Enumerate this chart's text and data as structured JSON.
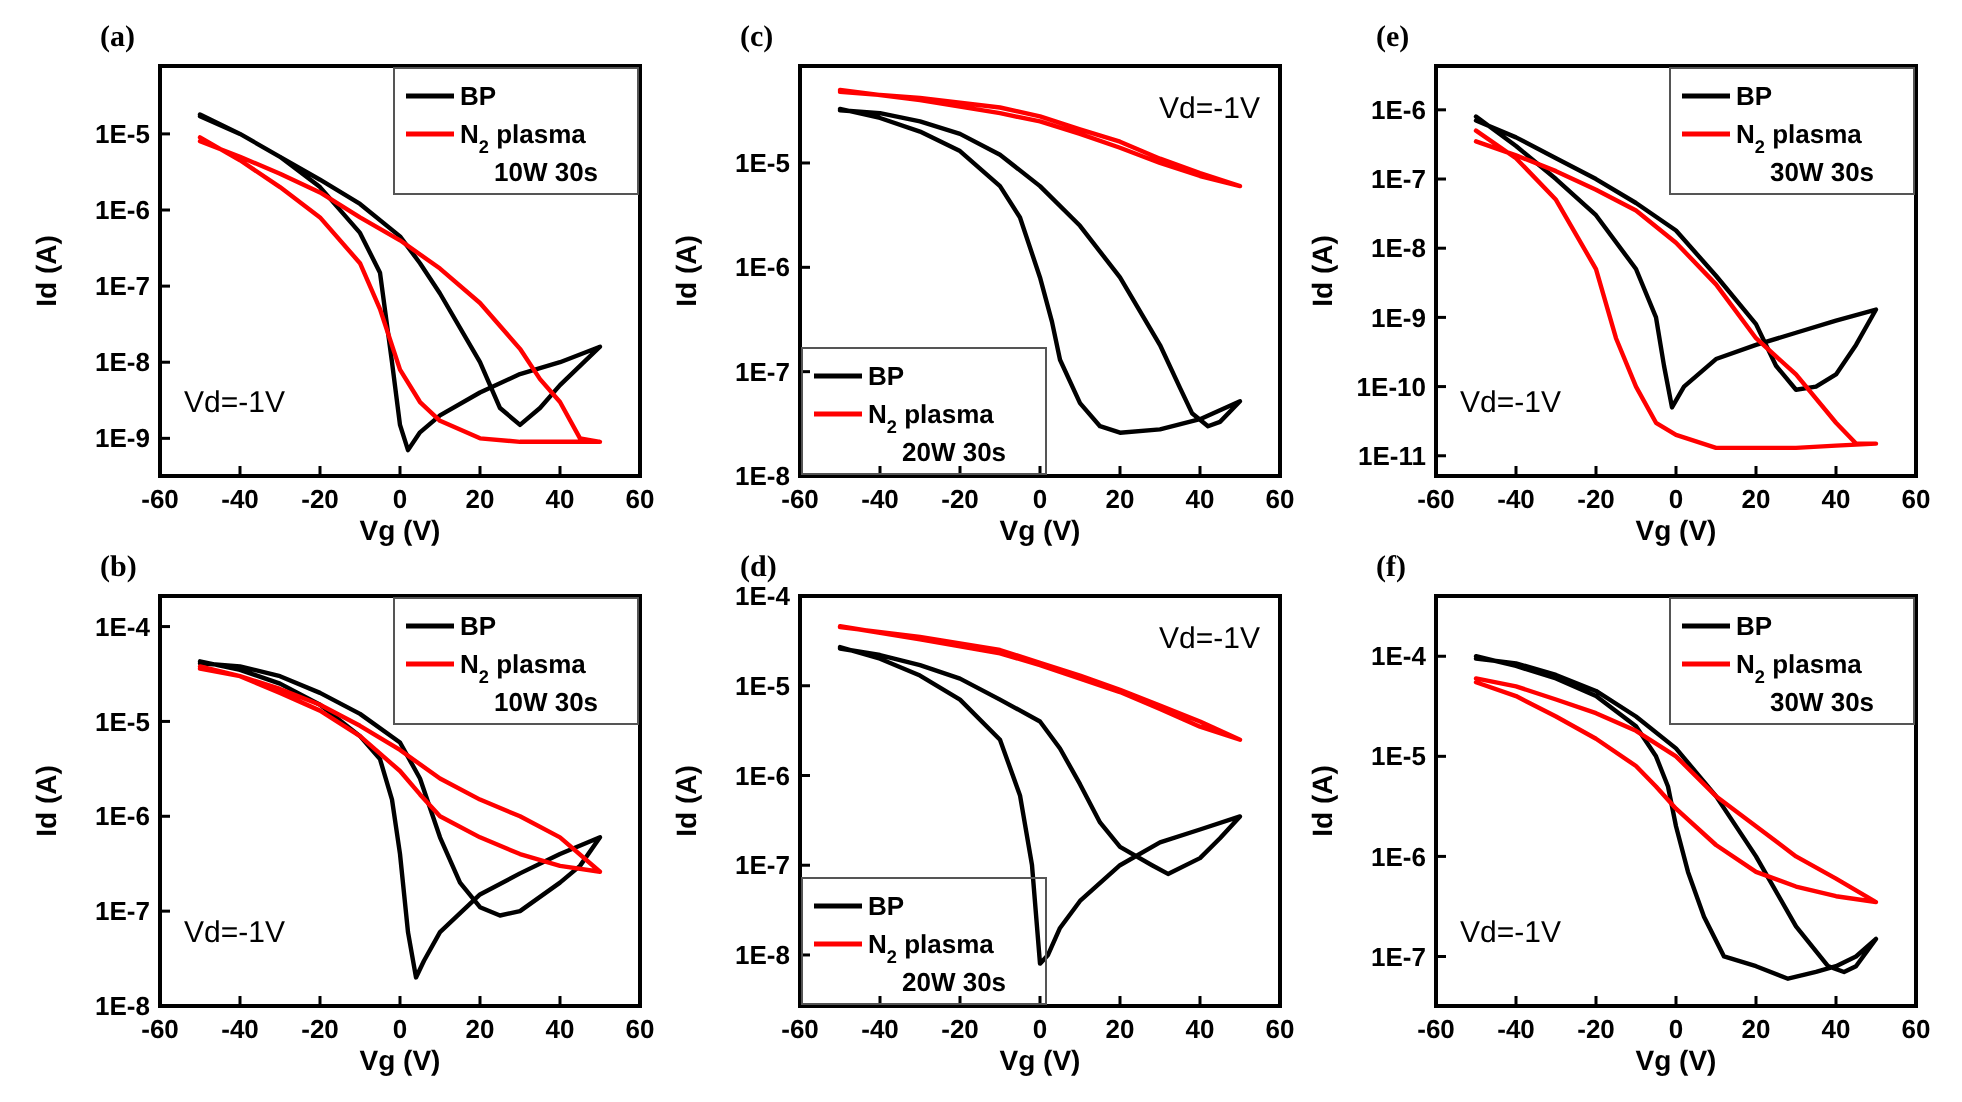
{
  "chart_data": [
    {
      "type": "line",
      "title": "(a)",
      "xlabel": "Vg (V)",
      "ylabel": "Id (A)",
      "annotations": [
        "Vd=-1V"
      ],
      "log": "y",
      "legend": "top right",
      "xlim": [
        -60,
        60
      ],
      "xticks": [
        -60,
        -40,
        -20,
        0,
        20,
        40,
        60
      ],
      "ylim": [
        3.2e-10,
        7.8e-05
      ],
      "yticks": [
        {
          "value": 1e-09,
          "label": "1E-9"
        },
        {
          "value": 1e-08,
          "label": "1E-8"
        },
        {
          "value": 1e-07,
          "label": "1E-7"
        },
        {
          "value": 1e-06,
          "label": "1E-6"
        },
        {
          "value": 1e-05,
          "label": "1E-5"
        }
      ],
      "series": [
        {
          "name": "BP",
          "color": "#000000",
          "x": [
            -50,
            -40,
            -30,
            -20,
            -10,
            -5,
            -2,
            0,
            2,
            5,
            10,
            20,
            30,
            40,
            50,
            40,
            35,
            30,
            25,
            20,
            10,
            5,
            0,
            -10,
            -20,
            -30,
            -40,
            -50
          ],
          "values": [
            1.8e-05,
            1e-05,
            5e-06,
            2e-06,
            5e-07,
            1.5e-07,
            1e-08,
            1.5e-09,
            7e-10,
            1.2e-09,
            2e-09,
            4e-09,
            7e-09,
            1e-08,
            1.6e-08,
            5e-09,
            2.5e-09,
            1.5e-09,
            2.5e-09,
            1e-08,
            8e-08,
            2e-07,
            4.5e-07,
            1.2e-06,
            2.5e-06,
            5e-06,
            1e-05,
            1.7e-05
          ]
        },
        {
          "name": "N$_{2}$ plasma\n10W 30s",
          "color": "#ff0000",
          "x": [
            -50,
            -40,
            -30,
            -20,
            -10,
            -5,
            0,
            5,
            10,
            20,
            30,
            40,
            50,
            45,
            40,
            35,
            30,
            20,
            10,
            0,
            -10,
            -20,
            -30,
            -40,
            -50
          ],
          "values": [
            9e-06,
            4.5e-06,
            2e-06,
            8e-07,
            2e-07,
            5e-08,
            8e-09,
            3e-09,
            1.7e-09,
            1e-09,
            9e-10,
            9e-10,
            9e-10,
            1e-09,
            3e-09,
            6e-09,
            1.5e-08,
            6e-08,
            1.7e-07,
            4e-07,
            8e-07,
            1.7e-06,
            3e-06,
            5e-06,
            8e-06
          ]
        }
      ]
    },
    {
      "type": "line",
      "title": "(b)",
      "xlabel": "Vg (V)",
      "ylabel": "Id (A)",
      "annotations": [
        "Vd=-1V"
      ],
      "log": "y",
      "legend": "top right",
      "xlim": [
        -60,
        60
      ],
      "xticks": [
        -60,
        -40,
        -20,
        0,
        20,
        40,
        60
      ],
      "ylim": [
        1e-08,
        0.00021
      ],
      "yticks": [
        {
          "value": 1e-08,
          "label": "1E-8"
        },
        {
          "value": 1e-07,
          "label": "1E-7"
        },
        {
          "value": 1e-06,
          "label": "1E-6"
        },
        {
          "value": 1e-05,
          "label": "1E-5"
        },
        {
          "value": 0.0001,
          "label": "1E-4"
        }
      ],
      "series": [
        {
          "name": "BP",
          "color": "#000000",
          "x": [
            -50,
            -40,
            -30,
            -20,
            -10,
            -5,
            -2,
            0,
            2,
            4,
            6,
            10,
            20,
            30,
            40,
            50,
            45,
            40,
            30,
            25,
            20,
            15,
            10,
            5,
            0,
            -10,
            -20,
            -30,
            -40,
            -50
          ],
          "values": [
            4.3e-05,
            3.5e-05,
            2.5e-05,
            1.5e-05,
            7e-06,
            4e-06,
            1.5e-06,
            4e-07,
            6e-08,
            2e-08,
            3e-08,
            6e-08,
            1.5e-07,
            2.5e-07,
            4e-07,
            6e-07,
            3e-07,
            2e-07,
            1e-07,
            9e-08,
            1.1e-07,
            2e-07,
            6e-07,
            2.5e-06,
            6e-06,
            1.2e-05,
            2e-05,
            3e-05,
            3.8e-05,
            4.1e-05
          ]
        },
        {
          "name": "N$_{2}$ plasma\n10W 30s",
          "color": "#ff0000",
          "x": [
            -50,
            -40,
            -30,
            -20,
            -10,
            0,
            5,
            10,
            20,
            30,
            40,
            50,
            40,
            30,
            20,
            10,
            0,
            -10,
            -20,
            -30,
            -40,
            -50
          ],
          "values": [
            3.8e-05,
            3e-05,
            2e-05,
            1.3e-05,
            7e-06,
            3e-06,
            1.7e-06,
            1e-06,
            6e-07,
            4e-07,
            3e-07,
            2.6e-07,
            6e-07,
            1e-06,
            1.5e-06,
            2.5e-06,
            5e-06,
            9e-06,
            1.5e-05,
            2.2e-05,
            3e-05,
            3.6e-05
          ]
        }
      ]
    },
    {
      "type": "line",
      "title": "(c)",
      "xlabel": "Vg (V)",
      "ylabel": "Id (A)",
      "annotations": [
        "Vd=-1V"
      ],
      "log": "y",
      "legend": "bottom left",
      "xlim": [
        -60,
        60
      ],
      "xticks": [
        -60,
        -40,
        -20,
        0,
        20,
        40,
        60
      ],
      "ylim": [
        1e-08,
        8.5e-05
      ],
      "yticks": [
        {
          "value": 1e-08,
          "label": "1E-8"
        },
        {
          "value": 1e-07,
          "label": "1E-7"
        },
        {
          "value": 1e-06,
          "label": "1E-6"
        },
        {
          "value": 1e-05,
          "label": "1E-5"
        }
      ],
      "series": [
        {
          "name": "BP",
          "color": "#000000",
          "x": [
            -50,
            -40,
            -30,
            -20,
            -10,
            -5,
            0,
            3,
            5,
            10,
            15,
            20,
            30,
            40,
            50,
            45,
            42,
            38,
            35,
            30,
            20,
            10,
            0,
            -10,
            -20,
            -30,
            -40,
            -50
          ],
          "values": [
            3.3e-05,
            2.7e-05,
            2e-05,
            1.3e-05,
            6e-06,
            3e-06,
            8e-07,
            3e-07,
            1.3e-07,
            5e-08,
            3e-08,
            2.6e-08,
            2.8e-08,
            3.5e-08,
            5.2e-08,
            3.3e-08,
            3e-08,
            4e-08,
            7e-08,
            1.8e-07,
            8e-07,
            2.5e-06,
            6e-06,
            1.2e-05,
            1.9e-05,
            2.5e-05,
            3e-05,
            3.2e-05
          ]
        },
        {
          "name": "N$_{2}$ plasma\n20W 30s",
          "color": "#ff0000",
          "x": [
            -50,
            -30,
            -10,
            0,
            10,
            20,
            30,
            40,
            50,
            40,
            30,
            20,
            10,
            0,
            -10,
            -30,
            -50
          ],
          "values": [
            5e-05,
            4e-05,
            3e-05,
            2.5e-05,
            1.9e-05,
            1.4e-05,
            1e-05,
            7.5e-06,
            6e-06,
            8e-06,
            1.1e-05,
            1.6e-05,
            2.1e-05,
            2.8e-05,
            3.4e-05,
            4.2e-05,
            4.8e-05
          ]
        }
      ]
    },
    {
      "type": "line",
      "title": "(d)",
      "xlabel": "Vg (V)",
      "ylabel": "Id (A)",
      "annotations": [
        "Vd=-1V"
      ],
      "log": "y",
      "legend": "bottom left",
      "xlim": [
        -60,
        60
      ],
      "xticks": [
        -60,
        -40,
        -20,
        0,
        20,
        40,
        60
      ],
      "ylim": [
        2.7e-09,
        0.0001
      ],
      "yticks": [
        {
          "value": 1e-08,
          "label": "1E-8"
        },
        {
          "value": 1e-07,
          "label": "1E-7"
        },
        {
          "value": 1e-06,
          "label": "1E-6"
        },
        {
          "value": 1e-05,
          "label": "1E-5"
        },
        {
          "value": 0.0001,
          "label": "1E-4"
        }
      ],
      "series": [
        {
          "name": "BP",
          "color": "#000000",
          "x": [
            -50,
            -40,
            -30,
            -20,
            -10,
            -5,
            -2,
            0,
            2,
            5,
            10,
            20,
            30,
            40,
            50,
            45,
            40,
            32,
            28,
            20,
            15,
            10,
            5,
            0,
            -10,
            -20,
            -30,
            -40,
            -50
          ],
          "values": [
            2.7e-05,
            2e-05,
            1.3e-05,
            7e-06,
            2.5e-06,
            6e-07,
            1e-07,
            8e-09,
            1e-08,
            2e-08,
            4e-08,
            1e-07,
            1.8e-07,
            2.5e-07,
            3.5e-07,
            2e-07,
            1.2e-07,
            8e-08,
            1e-07,
            1.6e-07,
            3e-07,
            8e-07,
            2e-06,
            4e-06,
            7e-06,
            1.2e-05,
            1.7e-05,
            2.2e-05,
            2.6e-05
          ]
        },
        {
          "name": "N$_{2}$ plasma\n20W 30s",
          "color": "#ff0000",
          "x": [
            -50,
            -30,
            -10,
            0,
            10,
            20,
            30,
            40,
            50,
            40,
            30,
            20,
            10,
            0,
            -10,
            -30,
            -50
          ],
          "values": [
            4.5e-05,
            3.5e-05,
            2.5e-05,
            1.8e-05,
            1.3e-05,
            9e-06,
            6e-06,
            4e-06,
            2.5e-06,
            3.5e-06,
            5.5e-06,
            8.5e-06,
            1.2e-05,
            1.7e-05,
            2.3e-05,
            3.3e-05,
            4.6e-05
          ]
        }
      ]
    },
    {
      "type": "line",
      "title": "(e)",
      "xlabel": "Vg (V)",
      "ylabel": "Id (A)",
      "annotations": [
        "Vd=-1V"
      ],
      "log": "y",
      "legend": "top right",
      "xlim": [
        -60,
        60
      ],
      "xticks": [
        -60,
        -40,
        -20,
        0,
        20,
        40,
        60
      ],
      "ylim": [
        5.1e-12,
        4.3e-06
      ],
      "yticks": [
        {
          "value": 1e-11,
          "label": "1E-11"
        },
        {
          "value": 1e-10,
          "label": "1E-10"
        },
        {
          "value": 1e-09,
          "label": "1E-9"
        },
        {
          "value": 1e-08,
          "label": "1E-8"
        },
        {
          "value": 1e-07,
          "label": "1E-7"
        },
        {
          "value": 1e-06,
          "label": "1E-6"
        }
      ],
      "series": [
        {
          "name": "BP",
          "color": "#000000",
          "x": [
            -50,
            -40,
            -30,
            -20,
            -10,
            -5,
            -3,
            -1,
            2,
            10,
            20,
            30,
            40,
            50,
            45,
            40,
            35,
            30,
            25,
            20,
            10,
            0,
            -10,
            -20,
            -30,
            -40,
            -50
          ],
          "values": [
            8e-07,
            3e-07,
            1e-07,
            3e-08,
            5e-09,
            1e-09,
            2e-10,
            5e-11,
            1e-10,
            2.5e-10,
            4e-10,
            6e-10,
            9e-10,
            1.3e-09,
            4e-10,
            1.5e-10,
            1e-10,
            9e-11,
            2e-10,
            8e-10,
            4e-09,
            1.8e-08,
            4.5e-08,
            1e-07,
            2e-07,
            4e-07,
            7e-07
          ]
        },
        {
          "name": "N$_{2}$ plasma\n30W 30s",
          "color": "#ff0000",
          "x": [
            -50,
            -40,
            -30,
            -20,
            -15,
            -10,
            -5,
            0,
            10,
            20,
            30,
            40,
            50,
            45,
            40,
            30,
            20,
            10,
            0,
            -10,
            -20,
            -30,
            -40,
            -50
          ],
          "values": [
            5e-07,
            2e-07,
            5e-08,
            5e-09,
            5e-10,
            1e-10,
            3e-11,
            2e-11,
            1.3e-11,
            1.3e-11,
            1.3e-11,
            1.4e-11,
            1.5e-11,
            1.5e-11,
            3e-11,
            1.5e-10,
            5e-10,
            3e-09,
            1.2e-08,
            3.5e-08,
            7e-08,
            1.3e-07,
            2.2e-07,
            3.5e-07
          ]
        }
      ]
    },
    {
      "type": "line",
      "title": "(f)",
      "xlabel": "Vg (V)",
      "ylabel": "Id (A)",
      "annotations": [
        "Vd=-1V"
      ],
      "log": "y",
      "legend": "top right",
      "xlim": [
        -60,
        60
      ],
      "xticks": [
        -60,
        -40,
        -20,
        0,
        20,
        40,
        60
      ],
      "ylim": [
        3.2e-08,
        0.0004
      ],
      "yticks": [
        {
          "value": 1e-07,
          "label": "1E-7"
        },
        {
          "value": 1e-06,
          "label": "1E-6"
        },
        {
          "value": 1e-05,
          "label": "1E-5"
        },
        {
          "value": 0.0001,
          "label": "1E-4"
        }
      ],
      "series": [
        {
          "name": "BP",
          "color": "#000000",
          "x": [
            -50,
            -40,
            -30,
            -20,
            -10,
            -5,
            -2,
            0,
            3,
            7,
            12,
            20,
            28,
            35,
            40,
            45,
            50,
            45,
            42,
            38,
            30,
            20,
            10,
            0,
            -10,
            -20,
            -30,
            -40,
            -50
          ],
          "values": [
            0.0001,
            8e-05,
            6e-05,
            4e-05,
            2e-05,
            1e-05,
            5e-06,
            2e-06,
            7e-07,
            2.5e-07,
            1e-07,
            8e-08,
            6e-08,
            7e-08,
            8e-08,
            1e-07,
            1.5e-07,
            8e-08,
            7e-08,
            8e-08,
            2e-07,
            1e-06,
            4e-06,
            1.2e-05,
            2.5e-05,
            4.5e-05,
            6.5e-05,
            8.5e-05,
            9.5e-05
          ]
        },
        {
          "name": "N$_{2}$ plasma\n30W 30s",
          "color": "#ff0000",
          "x": [
            -50,
            -40,
            -30,
            -20,
            -10,
            -5,
            0,
            10,
            20,
            30,
            40,
            50,
            40,
            30,
            20,
            10,
            0,
            -10,
            -20,
            -30,
            -40,
            -50
          ],
          "values": [
            5.5e-05,
            4e-05,
            2.5e-05,
            1.5e-05,
            8e-06,
            5e-06,
            3e-06,
            1.3e-06,
            7e-07,
            5e-07,
            4e-07,
            3.5e-07,
            6e-07,
            1e-06,
            2e-06,
            4e-06,
            1e-05,
            1.8e-05,
            2.7e-05,
            3.7e-05,
            5e-05,
            6e-05
          ]
        }
      ]
    }
  ]
}
